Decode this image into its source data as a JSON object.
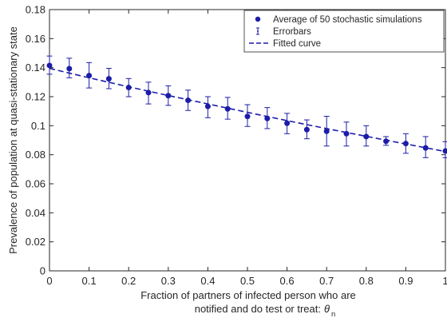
{
  "chart_data": {
    "type": "scatter",
    "xlabel": "Fraction of  partners of infected person who are",
    "xlabel_line2": "notified and do test or treat:",
    "xlabel_symbol": "θ",
    "xlabel_subscript": "n",
    "ylabel": "Prevalence of population at quasi-stationary state",
    "xlim": [
      0,
      1
    ],
    "ylim": [
      0,
      0.18
    ],
    "x_ticks": [
      0,
      0.1,
      0.2,
      0.3,
      0.4,
      0.5,
      0.6,
      0.7,
      0.8,
      0.9,
      1
    ],
    "x_tick_labels": [
      "0",
      "0.1",
      "0.2",
      "0.3",
      "0.4",
      "0.5",
      "0.6",
      "0.7",
      "0.8",
      "0.9",
      "1"
    ],
    "y_ticks": [
      0,
      0.02,
      0.04,
      0.06,
      0.08,
      0.1,
      0.12,
      0.14,
      0.16,
      0.18
    ],
    "y_tick_labels": [
      "0",
      "0.02",
      "0.04",
      "0.06",
      "0.08",
      "0.1",
      "0.12",
      "0.14",
      "0.16",
      "0.18"
    ],
    "grid": false,
    "legend_position": "top-right",
    "colors": {
      "series": "#1c1ca8",
      "axis": "#262626"
    },
    "series": [
      {
        "name": "Average of 50 stochastic simulations",
        "kind": "markers",
        "x": [
          0,
          0.05,
          0.1,
          0.15,
          0.2,
          0.25,
          0.3,
          0.35,
          0.4,
          0.45,
          0.5,
          0.55,
          0.6,
          0.65,
          0.7,
          0.75,
          0.8,
          0.85,
          0.9,
          0.95,
          1
        ],
        "y": [
          0.1415,
          0.1393,
          0.1345,
          0.1323,
          0.1263,
          0.1228,
          0.1207,
          0.1175,
          0.1133,
          0.1116,
          0.1064,
          0.105,
          0.1017,
          0.0973,
          0.0962,
          0.0945,
          0.0925,
          0.0893,
          0.0877,
          0.0847,
          0.0826
        ]
      },
      {
        "name": "Errorbars",
        "kind": "errorbar",
        "x": [
          0,
          0.05,
          0.1,
          0.15,
          0.2,
          0.25,
          0.3,
          0.35,
          0.4,
          0.45,
          0.5,
          0.55,
          0.6,
          0.65,
          0.7,
          0.75,
          0.8,
          0.85,
          0.9,
          0.95,
          1
        ],
        "low": [
          0.1355,
          0.133,
          0.126,
          0.1255,
          0.12,
          0.115,
          0.114,
          0.1105,
          0.1055,
          0.1045,
          0.0995,
          0.098,
          0.0945,
          0.091,
          0.086,
          0.086,
          0.086,
          0.0865,
          0.081,
          0.078,
          0.078
        ],
        "high": [
          0.148,
          0.1465,
          0.1435,
          0.1395,
          0.1325,
          0.13,
          0.1275,
          0.1245,
          0.12,
          0.1195,
          0.1145,
          0.1125,
          0.1085,
          0.104,
          0.1065,
          0.1025,
          0.1,
          0.0925,
          0.0945,
          0.0925,
          0.089
        ]
      },
      {
        "name": "Fitted curve",
        "kind": "line",
        "style": "dashed",
        "x": [
          0,
          0.1,
          0.2,
          0.3,
          0.4,
          0.5,
          0.6,
          0.7,
          0.8,
          0.9,
          1
        ],
        "y": [
          0.1395,
          0.133,
          0.1268,
          0.1208,
          0.115,
          0.1092,
          0.1035,
          0.098,
          0.0927,
          0.0874,
          0.0822
        ]
      }
    ]
  }
}
